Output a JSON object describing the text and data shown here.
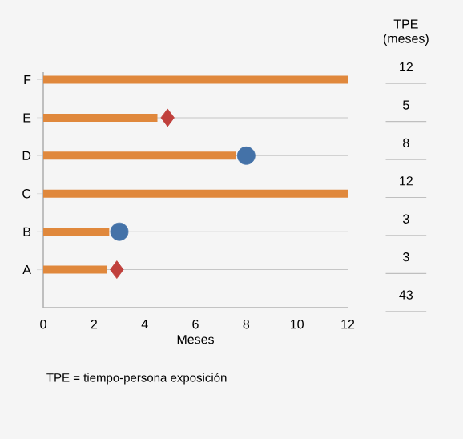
{
  "chart_data": {
    "type": "bar",
    "orientation": "horizontal",
    "xlabel": "Meses",
    "categories": [
      "F",
      "E",
      "D",
      "C",
      "B",
      "A"
    ],
    "series": [
      {
        "color": "#e0883c",
        "values": [
          12,
          4.5,
          7.6,
          12,
          2.6,
          2.5
        ]
      },
      {
        "type": "scatter",
        "marker": "circle",
        "color": "#4472a8",
        "values": [
          null,
          null,
          8,
          null,
          3,
          null
        ]
      },
      {
        "type": "scatter",
        "marker": "diamond",
        "color": "#c0403c",
        "values": [
          null,
          4.9,
          null,
          null,
          null,
          2.9
        ]
      }
    ],
    "xlim": [
      0,
      12
    ],
    "xticks": [
      0,
      2,
      4,
      6,
      8,
      10,
      12
    ],
    "grid": "y",
    "annotations": [
      "TPE (meses)",
      "12",
      "5",
      "8",
      "12",
      "3",
      "3",
      "43",
      "TPE = tiempo-persona exposición"
    ]
  }
}
